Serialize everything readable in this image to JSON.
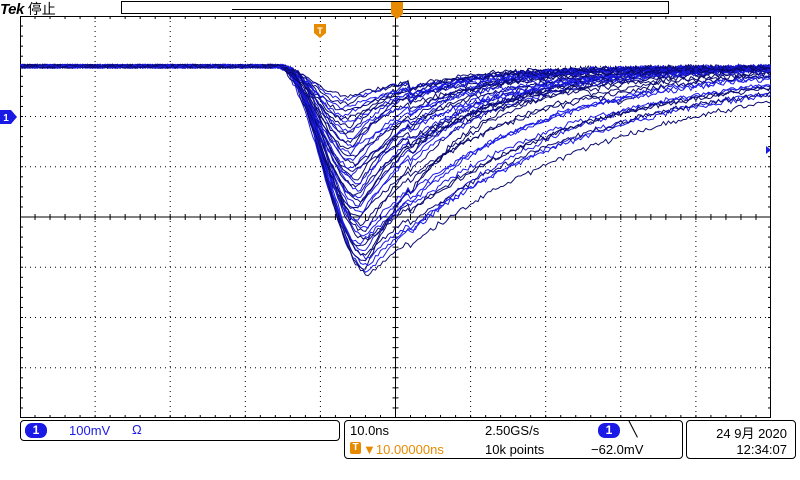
{
  "header": {
    "brand": "Tek",
    "acq_state": "停止",
    "trigger_marker": "T"
  },
  "channel": {
    "badge": "1",
    "scale": "100mV",
    "impedance_icon": "Ω"
  },
  "timebase": {
    "time_per_div": "10.0ns",
    "trigger_marker": "T",
    "trigger_position": "→▼10.00000ns",
    "sample_rate": "2.50GS/s",
    "record_length": "10k points"
  },
  "trigger": {
    "source_badge": "1",
    "slope_icon": "falling-edge-icon",
    "slope_glyph": "╲",
    "level": "−62.0mV"
  },
  "datetime": {
    "date": "24 9月 2020",
    "time": "12:34:07"
  },
  "chart_data": {
    "type": "line",
    "title": "",
    "xlabel": "",
    "ylabel": "",
    "grid": true,
    "divisions": {
      "x": 10,
      "y": 8
    },
    "vertical_scale": "100mV/div",
    "horizontal_scale": "10.0ns/div",
    "channel_ground_div": 3,
    "trigger_offset_div": -1,
    "trace_description": "Overlaid persistence captures of a negative pulse, baseline near +3 div, dips to between about +1.5 and -1.2 div around -0.5 div, recovering by +4.5 div",
    "series": [
      {
        "baseline_div": 3.0,
        "min_div": -1.15,
        "min_t_div": -0.35,
        "width_div": 0.9
      },
      {
        "baseline_div": 3.0,
        "min_div": -0.9,
        "min_t_div": -0.4,
        "width_div": 0.85
      },
      {
        "baseline_div": 3.0,
        "min_div": -0.6,
        "min_t_div": -0.45,
        "width_div": 0.8
      },
      {
        "baseline_div": 3.0,
        "min_div": -0.3,
        "min_t_div": -0.4,
        "width_div": 0.8
      },
      {
        "baseline_div": 3.0,
        "min_div": 0.0,
        "min_t_div": -0.5,
        "width_div": 0.7
      },
      {
        "baseline_div": 3.0,
        "min_div": 0.3,
        "min_t_div": -0.45,
        "width_div": 0.7
      },
      {
        "baseline_div": 3.0,
        "min_div": 0.6,
        "min_t_div": -0.5,
        "width_div": 0.65
      },
      {
        "baseline_div": 3.0,
        "min_div": 0.9,
        "min_t_div": -0.55,
        "width_div": 0.6
      },
      {
        "baseline_div": 3.0,
        "min_div": 1.2,
        "min_t_div": -0.55,
        "width_div": 0.6
      },
      {
        "baseline_div": 3.0,
        "min_div": 1.5,
        "min_t_div": -0.6,
        "width_div": 0.5
      },
      {
        "baseline_div": 3.0,
        "min_div": 1.8,
        "min_t_div": -0.6,
        "width_div": 0.5
      },
      {
        "baseline_div": 3.0,
        "min_div": 2.1,
        "min_t_div": -0.65,
        "width_div": 0.45
      },
      {
        "baseline_div": 3.0,
        "min_div": 2.4,
        "min_t_div": -0.6,
        "width_div": 0.45
      }
    ]
  },
  "colors": {
    "trace": "#1a1ae6",
    "trace_dark": "#0a0a70",
    "trigger": "#e88a00",
    "grid": "#000000"
  }
}
